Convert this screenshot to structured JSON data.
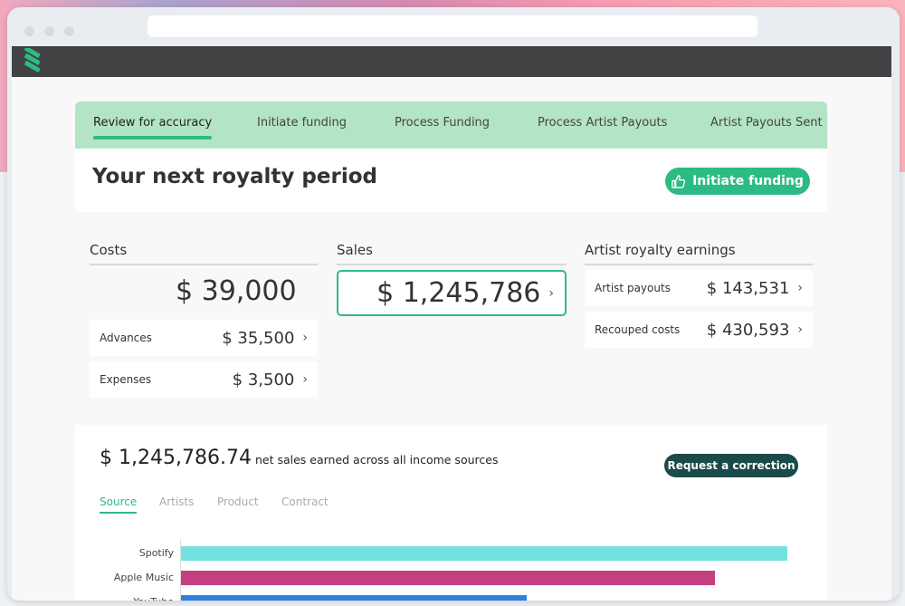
{
  "stepper": {
    "steps": [
      "Review for accuracy",
      "Initiate funding",
      "Process Funding",
      "Process Artist Payouts",
      "Artist Payouts Sent"
    ],
    "active": 0
  },
  "header": {
    "title": "Your next royalty period",
    "initiate_button": "Initiate funding",
    "initiate_icon": "thumbs-up-icon"
  },
  "costs": {
    "heading": "Costs",
    "total": "$ 39,000",
    "rows": [
      {
        "label": "Advances",
        "value": "$ 35,500"
      },
      {
        "label": "Expenses",
        "value": "$ 3,500"
      }
    ]
  },
  "sales": {
    "heading": "Sales",
    "total": "$ 1,245,786"
  },
  "earnings": {
    "heading": "Artist royalty earnings",
    "rows": [
      {
        "label": "Artist payouts",
        "value": "$ 143,531"
      },
      {
        "label": "Recouped costs",
        "value": "$ 430,593"
      }
    ]
  },
  "summary": {
    "amount": "$ 1,245,786.74",
    "description": "net sales earned across all income sources",
    "correction_button": "Request a correction"
  },
  "tabs": [
    "Source",
    "Artists",
    "Product",
    "Contract"
  ],
  "chart_data": {
    "type": "bar",
    "orientation": "horizontal",
    "categories": [
      "Spotify",
      "Apple Music",
      "YouTube"
    ],
    "values_relative_to_max": [
      1.0,
      0.88,
      0.57
    ],
    "colors": [
      "#74e1e1",
      "#c43f7f",
      "#2f80e0"
    ]
  },
  "colors": {
    "accent": "#2dbb84",
    "stepper_bg": "#b3e4c5",
    "dark_button": "#1b4a4a",
    "topbar": "#424244"
  }
}
